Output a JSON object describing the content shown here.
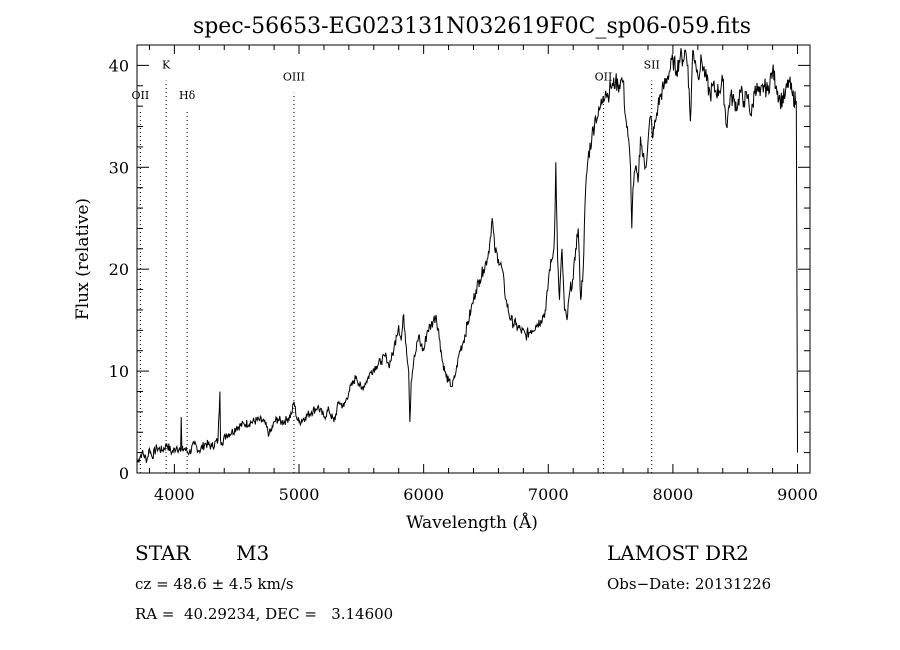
{
  "chart_data": {
    "type": "line",
    "title": "spec-56653-EG023131N032619F0C_sp06-059.fits",
    "xlabel": "Wavelength (Å)",
    "ylabel": "Flux (relative)",
    "xlim": [
      3700,
      9100
    ],
    "ylim": [
      0,
      42
    ],
    "xticks": [
      4000,
      5000,
      6000,
      7000,
      8000,
      9000
    ],
    "yticks": [
      0,
      10,
      20,
      30,
      40
    ],
    "line_color": "#000000",
    "grid": false,
    "line_markers": [
      {
        "label": "OII",
        "x": 3727,
        "label_y": 36.7
      },
      {
        "label": "K",
        "x": 3934,
        "label_y": 39.7
      },
      {
        "label": "Hδ",
        "x": 4102,
        "label_y": 36.7
      },
      {
        "label": "OIII",
        "x": 4959,
        "label_y": 38.5
      },
      {
        "label": "OII",
        "x": 7443,
        "label_y": 38.5
      },
      {
        "label": "SII",
        "x": 7830,
        "label_y": 39.7
      }
    ],
    "series": [
      {
        "x": [
          3700,
          3740,
          3780,
          3800,
          3820,
          3860,
          3900,
          3940,
          3980,
          4020,
          4050,
          4055,
          4060,
          4080,
          4120,
          4160,
          4200,
          4250,
          4300,
          4350,
          4365,
          4370,
          4380,
          4420,
          4460,
          4500,
          4560,
          4620,
          4680,
          4720,
          4760,
          4790,
          4800,
          4830,
          4860,
          4900,
          4940,
          4960,
          4980,
          5000,
          5050,
          5100,
          5150,
          5200,
          5240,
          5280,
          5320,
          5360,
          5400,
          5440,
          5460,
          5500,
          5540,
          5580,
          5620,
          5660,
          5700,
          5720,
          5760,
          5780,
          5800,
          5820,
          5840,
          5860,
          5880,
          5890,
          5900,
          5920,
          5940,
          5960,
          5980,
          6000,
          6030,
          6060,
          6080,
          6100,
          6130,
          6150,
          6180,
          6200,
          6230,
          6260,
          6290,
          6320,
          6350,
          6380,
          6400,
          6420,
          6450,
          6480,
          6510,
          6530,
          6550,
          6570,
          6600,
          6630,
          6660,
          6700,
          6740,
          6780,
          6820,
          6860,
          6900,
          6940,
          6980,
          7010,
          7030,
          7045,
          7055,
          7060,
          7075,
          7090,
          7110,
          7130,
          7150,
          7175,
          7200,
          7220,
          7240,
          7260,
          7280,
          7300,
          7320,
          7350,
          7380,
          7400,
          7420,
          7440,
          7460,
          7480,
          7500,
          7520,
          7540,
          7560,
          7580,
          7600,
          7620,
          7640,
          7660,
          7670,
          7680,
          7700,
          7720,
          7740,
          7760,
          7780,
          7800,
          7820,
          7840,
          7860,
          7880,
          7900,
          7930,
          7960,
          8000,
          8030,
          8060,
          8080,
          8100,
          8120,
          8140,
          8160,
          8180,
          8200,
          8230,
          8260,
          8300,
          8320,
          8340,
          8370,
          8400,
          8430,
          8460,
          8490,
          8520,
          8540,
          8570,
          8600,
          8630,
          8660,
          8700,
          8730,
          8760,
          8800,
          8830,
          8860,
          8900,
          8930,
          8960,
          8990,
          9000
        ],
        "y": [
          1.0,
          2.0,
          1.3,
          2.4,
          1.6,
          2.5,
          2.2,
          2.8,
          2.0,
          2.6,
          2.1,
          5.5,
          2.2,
          2.4,
          2.0,
          2.8,
          2.2,
          2.9,
          2.6,
          3.2,
          8.0,
          3.3,
          3.0,
          3.8,
          4.0,
          4.5,
          4.8,
          5.0,
          5.2,
          5.0,
          3.8,
          4.5,
          5.0,
          5.3,
          5.0,
          5.2,
          5.8,
          7.0,
          5.5,
          5.0,
          5.5,
          6.0,
          6.5,
          5.5,
          6.2,
          5.0,
          7.0,
          6.5,
          8.0,
          9.0,
          9.5,
          8.2,
          9.0,
          10.0,
          10.5,
          11.0,
          11.5,
          10.5,
          12.0,
          13.5,
          14.5,
          13.0,
          15.5,
          12.5,
          10.0,
          5.0,
          9.0,
          11.0,
          12.0,
          13.5,
          12.5,
          12.0,
          14.0,
          14.5,
          15.0,
          15.5,
          13.0,
          11.0,
          9.5,
          9.0,
          8.5,
          10.0,
          12.0,
          13.0,
          14.5,
          16.0,
          17.0,
          18.0,
          19.0,
          20.0,
          21.0,
          22.5,
          25.0,
          22.0,
          21.0,
          20.0,
          17.0,
          15.0,
          14.5,
          14.0,
          13.5,
          14.0,
          14.5,
          15.0,
          16.0,
          20.0,
          21.0,
          22.0,
          26.0,
          30.5,
          21.0,
          17.0,
          22.0,
          16.0,
          15.0,
          18.0,
          19.0,
          22.0,
          24.0,
          17.0,
          20.0,
          28.0,
          31.0,
          33.0,
          35.0,
          35.0,
          36.0,
          37.0,
          37.5,
          37.0,
          38.0,
          38.0,
          38.5,
          38.0,
          38.5,
          38.5,
          35.0,
          33.0,
          30.0,
          24.0,
          28.0,
          30.0,
          28.5,
          33.0,
          31.0,
          30.0,
          32.5,
          35.0,
          33.0,
          34.5,
          36.0,
          37.0,
          38.0,
          39.0,
          40.5,
          39.5,
          41.0,
          40.5,
          41.5,
          40.0,
          34.5,
          41.5,
          40.5,
          39.0,
          40.5,
          39.0,
          37.0,
          38.0,
          37.5,
          37.5,
          38.5,
          34.0,
          37.0,
          36.5,
          36.0,
          37.5,
          36.5,
          37.0,
          35.0,
          38.0,
          37.0,
          38.0,
          37.5,
          39.5,
          38.0,
          36.5,
          37.0,
          38.5,
          37.0,
          36.5,
          2.0
        ]
      }
    ]
  },
  "info": {
    "object_type": "STAR",
    "subclass": "M3",
    "survey": "LAMOST DR2",
    "redshift": "cz = 48.6 ± 4.5 km/s",
    "obs_date": "Obs−Date: 20131226",
    "coords": "RA =  40.29234, DEC =   3.14600"
  }
}
